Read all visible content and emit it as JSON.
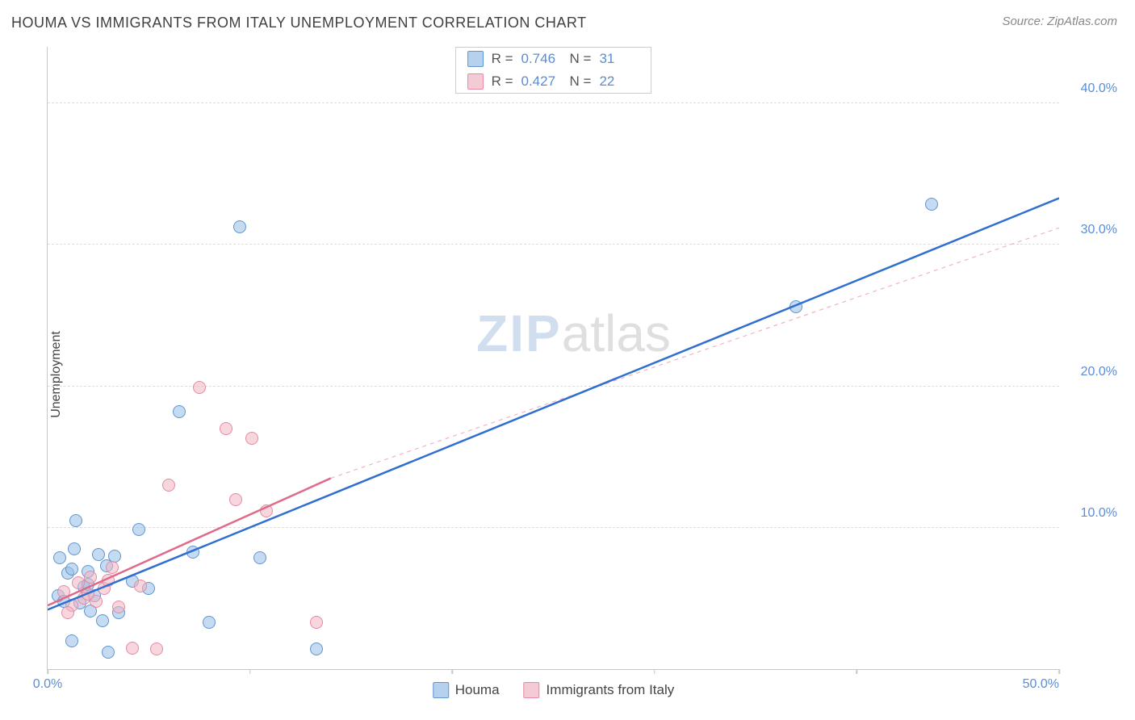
{
  "title": "HOUMA VS IMMIGRANTS FROM ITALY UNEMPLOYMENT CORRELATION CHART",
  "source": "Source: ZipAtlas.com",
  "ylabel": "Unemployment",
  "watermark_a": "ZIP",
  "watermark_b": "atlas",
  "chart": {
    "type": "scatter",
    "xlim": [
      0,
      50
    ],
    "ylim": [
      0,
      44
    ],
    "xticks": [
      0,
      10,
      20,
      30,
      40,
      50
    ],
    "xtick_labels": [
      "0.0%",
      "",
      "",
      "",
      "",
      "50.0%"
    ],
    "yticks": [
      10,
      20,
      30,
      40
    ],
    "ytick_labels": [
      "10.0%",
      "20.0%",
      "30.0%",
      "40.0%"
    ],
    "background": "#ffffff",
    "grid_color": "#dddddd",
    "axis_color": "#c8c8c8",
    "tick_label_color": "#5b8dd6",
    "series": [
      {
        "name": "Houma",
        "color_fill": "rgba(150,190,230,0.55)",
        "color_stroke": "#6095d0",
        "marker_size": 16,
        "r": "0.746",
        "n": "31",
        "trend": {
          "x1": 0,
          "y1": 4.2,
          "x2": 50,
          "y2": 33.3,
          "dash": "none",
          "stroke": "#2f6fd0",
          "width": 2.5
        },
        "points": [
          [
            0.5,
            5.2
          ],
          [
            0.8,
            4.8
          ],
          [
            1.0,
            6.8
          ],
          [
            1.2,
            7.1
          ],
          [
            1.3,
            8.5
          ],
          [
            1.4,
            10.5
          ],
          [
            1.8,
            5.8
          ],
          [
            2.0,
            6.9
          ],
          [
            2.3,
            5.2
          ],
          [
            2.5,
            8.1
          ],
          [
            2.7,
            3.4
          ],
          [
            2.9,
            7.3
          ],
          [
            1.2,
            2.0
          ],
          [
            3.0,
            1.2
          ],
          [
            3.5,
            4.0
          ],
          [
            4.2,
            6.2
          ],
          [
            4.5,
            9.9
          ],
          [
            5.0,
            5.7
          ],
          [
            6.5,
            18.2
          ],
          [
            7.2,
            8.3
          ],
          [
            8.0,
            3.3
          ],
          [
            9.5,
            31.3
          ],
          [
            10.5,
            7.9
          ],
          [
            13.3,
            1.4
          ],
          [
            0.6,
            7.9
          ],
          [
            1.6,
            4.7
          ],
          [
            2.1,
            4.1
          ],
          [
            3.3,
            8.0
          ],
          [
            37.0,
            25.6
          ],
          [
            43.7,
            32.9
          ],
          [
            2.0,
            6.0
          ]
        ]
      },
      {
        "name": "Immigrants from Italy",
        "color_fill": "rgba(240,180,195,0.55)",
        "color_stroke": "#e48ba3",
        "marker_size": 16,
        "r": "0.427",
        "n": "22",
        "trend_solid": {
          "x1": 0,
          "y1": 4.5,
          "x2": 14,
          "y2": 13.5,
          "dash": "none",
          "stroke": "#e06a8a",
          "width": 2.5
        },
        "trend_dash": {
          "x1": 14,
          "y1": 13.5,
          "x2": 50,
          "y2": 31.2,
          "dash": "5,5",
          "stroke": "#f0b3c2",
          "width": 1.2
        },
        "points": [
          [
            0.8,
            5.5
          ],
          [
            1.2,
            4.5
          ],
          [
            1.5,
            6.1
          ],
          [
            1.8,
            5.0
          ],
          [
            2.1,
            6.5
          ],
          [
            2.4,
            4.8
          ],
          [
            2.8,
            5.7
          ],
          [
            3.2,
            7.2
          ],
          [
            3.5,
            4.4
          ],
          [
            4.2,
            1.5
          ],
          [
            4.6,
            5.9
          ],
          [
            5.4,
            1.4
          ],
          [
            6.0,
            13.0
          ],
          [
            7.5,
            19.9
          ],
          [
            8.8,
            17.0
          ],
          [
            9.3,
            12.0
          ],
          [
            10.1,
            16.3
          ],
          [
            10.8,
            11.2
          ],
          [
            13.3,
            3.3
          ],
          [
            2.0,
            5.3
          ],
          [
            3.0,
            6.3
          ],
          [
            1.0,
            4.0
          ]
        ]
      }
    ],
    "legend_bottom": [
      "Houma",
      "Immigrants from Italy"
    ]
  }
}
